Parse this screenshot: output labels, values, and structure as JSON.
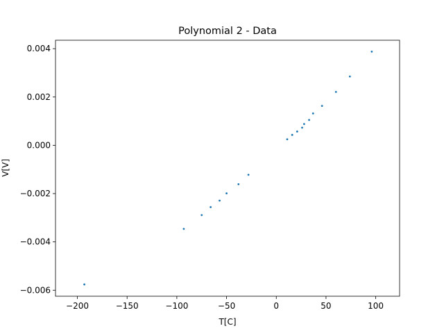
{
  "chart_data": {
    "type": "scatter",
    "title": "Polynomial 2 - Data",
    "xlabel": "T[C]",
    "ylabel": "V[V]",
    "xlim": [
      -222,
      124
    ],
    "ylim": [
      -0.00625,
      0.00435
    ],
    "xticks": [
      -200,
      -150,
      -100,
      -50,
      0,
      50,
      100
    ],
    "xtick_labels": [
      "−200",
      "−150",
      "−100",
      "−50",
      "0",
      "50",
      "100"
    ],
    "yticks": [
      -0.006,
      -0.004,
      -0.002,
      0.0,
      0.002,
      0.004
    ],
    "ytick_labels": [
      "−0.006",
      "−0.004",
      "−0.002",
      "0.000",
      "0.002",
      "0.004"
    ],
    "grid": false,
    "marker_color": "#1f77b4",
    "series": [
      {
        "x": [
          -193,
          -93,
          -75,
          -66,
          -57,
          -50,
          -38,
          -28,
          11,
          16,
          21,
          26,
          28,
          33,
          37,
          46,
          60,
          74,
          96
        ],
        "y": [
          -0.00576,
          -0.00346,
          -0.00289,
          -0.00256,
          -0.00229,
          -0.00199,
          -0.00161,
          -0.00122,
          0.00025,
          0.00043,
          0.00057,
          0.00073,
          0.00088,
          0.00105,
          0.00132,
          0.00163,
          0.00221,
          0.00285,
          0.00388
        ]
      }
    ]
  }
}
